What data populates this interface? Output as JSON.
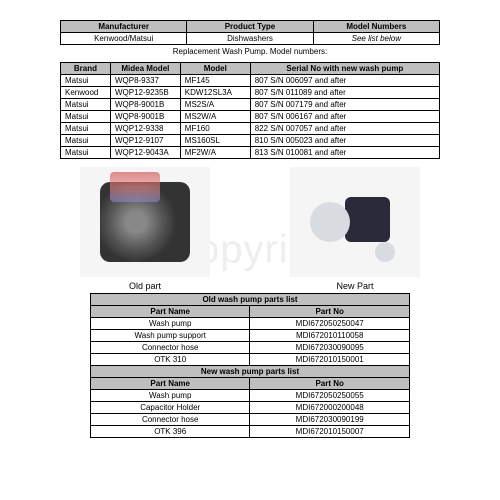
{
  "watermark": "4copyright",
  "topTable": {
    "headers": [
      "Manufacturer",
      "Product Type",
      "Model Numbers"
    ],
    "row": [
      "Kenwood/Matsui",
      "Dishwashers",
      "See list below"
    ]
  },
  "modelsCaption": "Replacement Wash Pump. Model numbers:",
  "modelsTable": {
    "headers": [
      "Brand",
      "Midea Model",
      "Model",
      "Serial No with new wash pump"
    ],
    "rows": [
      [
        "Matsui",
        "WQP8-9337",
        "MF145",
        "807 S/N 006097 and after"
      ],
      [
        "Kenwood",
        "WQP12-9235B",
        "KDW12SL3A",
        "807 S/N 011089 and after"
      ],
      [
        "Matsui",
        "WQP8-9001B",
        "MS2S/A",
        "807 S/N 007179 and after"
      ],
      [
        "Matsui",
        "WQP8-9001B",
        "MS2W/A",
        "807 S/N 006167 and after"
      ],
      [
        "Matsui",
        "WQP12-9338",
        "MF160",
        "822 S/N 007057 and after"
      ],
      [
        "Matsui",
        "WQP12-9107",
        "MS160SL",
        "810 S/N 005023 and after"
      ],
      [
        "Matsui",
        "WQP12-9043A",
        "MF2W/A",
        "813 S/N 010081 and after"
      ]
    ]
  },
  "images": {
    "oldLabel": "Old part",
    "newLabel": "New Part"
  },
  "oldParts": {
    "caption": "Old wash pump parts list",
    "headers": [
      "Part Name",
      "Part No"
    ],
    "rows": [
      [
        "Wash pump",
        "MDI672050250047"
      ],
      [
        "Wash pump support",
        "MDI672010110058"
      ],
      [
        "Connector hose",
        "MDI672030090095"
      ],
      [
        "OTK 310",
        "MDI672010150001"
      ]
    ]
  },
  "newParts": {
    "caption": "New wash pump parts list",
    "headers": [
      "Part Name",
      "Part No"
    ],
    "rows": [
      [
        "Wash pump",
        "MDI672050250055"
      ],
      [
        "Capacitor Holder",
        "MDI672000200048"
      ],
      [
        "Connector hose",
        "MDI672030090199"
      ],
      [
        "OTK 396",
        "MDI672010150007"
      ]
    ]
  }
}
